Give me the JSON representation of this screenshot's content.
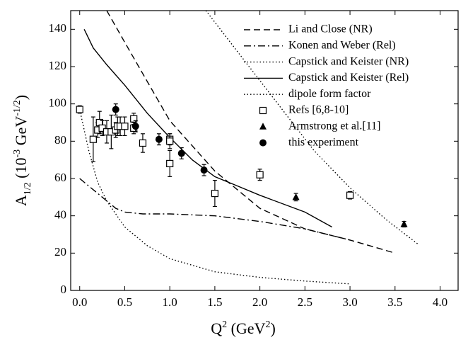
{
  "chart_data": {
    "type": "line",
    "x_label": [
      {
        "text": "Q"
      },
      {
        "text": "2",
        "shift": "super"
      },
      {
        "text": " (GeV"
      },
      {
        "text": "2",
        "shift": "super"
      },
      {
        "text": ")"
      }
    ],
    "y_label": [
      {
        "text": "A"
      },
      {
        "text": "1/2",
        "shift": "sub"
      },
      {
        "text": " (10"
      },
      {
        "text": "-3",
        "shift": "super"
      },
      {
        "text": " GeV"
      },
      {
        "text": "-1/2",
        "shift": "super"
      },
      {
        "text": ")"
      }
    ],
    "xlim": [
      -0.1,
      4.2
    ],
    "ylim": [
      0,
      150
    ],
    "xticks": [
      {
        "value": 0,
        "label": "0.0"
      },
      {
        "value": 0.5,
        "label": "0.5"
      },
      {
        "value": 1,
        "label": "1.0"
      },
      {
        "value": 1.5,
        "label": "1.5"
      },
      {
        "value": 2,
        "label": "2.0"
      },
      {
        "value": 2.5,
        "label": "2.5"
      },
      {
        "value": 3,
        "label": "3.0"
      },
      {
        "value": 3.5,
        "label": "3.5"
      },
      {
        "value": 4,
        "label": "4.0"
      }
    ],
    "yticks": [
      0,
      20,
      40,
      60,
      80,
      100,
      120,
      140
    ],
    "legend": "upper-right",
    "series": [
      {
        "name": "Li and Close (NR)",
        "type": "line",
        "style": "dashed",
        "color": "#000000",
        "x": [
          0.3,
          0.5,
          1.0,
          1.5,
          2.0,
          2.5,
          3.0,
          3.5
        ],
        "values": [
          150,
          133,
          91,
          64,
          44,
          33,
          27,
          20
        ]
      },
      {
        "name": "Konen and Weber (Rel)",
        "type": "line",
        "style": "dashdot",
        "color": "#000000",
        "x": [
          0,
          0.4,
          0.5,
          0.7,
          1.0,
          1.5,
          2.0,
          2.5,
          3.0
        ],
        "values": [
          60,
          44,
          42,
          41,
          41,
          40,
          37,
          33,
          27
        ]
      },
      {
        "name": "Capstick and Keister (NR)",
        "type": "line",
        "style": "dotted",
        "color": "#000000",
        "x": [
          1.4,
          1.8,
          2.2,
          2.6,
          3.0,
          3.4,
          3.75
        ],
        "values": [
          150,
          125,
          100,
          75,
          55,
          38,
          25
        ]
      },
      {
        "name": "Capstick and Keister (Rel)",
        "type": "line",
        "style": "solid",
        "color": "#000000",
        "x": [
          0.05,
          0.15,
          0.3,
          0.5,
          0.75,
          1.0,
          1.25,
          1.5,
          1.75,
          2.0,
          2.5,
          2.8
        ],
        "values": [
          140,
          130,
          121,
          110,
          95,
          82,
          70,
          61,
          56,
          51,
          42,
          34
        ]
      },
      {
        "name": "dipole form factor",
        "type": "line",
        "style": "dotted",
        "color": "#000000",
        "x": [
          0,
          0.1,
          0.2,
          0.3,
          0.5,
          0.75,
          1.0,
          1.5,
          2.0,
          2.5,
          3.0
        ],
        "values": [
          97,
          75,
          58,
          48,
          34,
          24,
          17,
          10,
          7,
          5,
          3.5
        ]
      },
      {
        "name": "Refs [6,8-10]",
        "type": "scatter",
        "marker": "square-open",
        "color": "#000000",
        "x": [
          0,
          0.15,
          0.2,
          0.22,
          0.25,
          0.3,
          0.35,
          0.4,
          0.42,
          0.45,
          0.5,
          0.6,
          0.6,
          0.7,
          1.0,
          1.0,
          1.0,
          1.5,
          2.0,
          3.0
        ],
        "values": [
          97,
          81,
          86,
          90,
          87,
          85,
          85,
          86,
          88,
          88,
          88,
          92,
          87,
          79,
          81,
          80,
          68,
          52,
          62,
          51
        ],
        "errors": [
          2,
          12,
          4,
          6,
          4,
          6,
          9,
          4,
          5,
          5,
          5,
          3,
          3,
          5,
          3,
          4,
          7,
          7,
          3,
          2
        ]
      },
      {
        "name": "Armstrong et al.[11]",
        "type": "scatter",
        "marker": "triangle",
        "color": "#000000",
        "x": [
          2.4,
          3.6
        ],
        "values": [
          50,
          35.5
        ],
        "errors": [
          2,
          1.5
        ]
      },
      {
        "name": "this experiment",
        "type": "scatter",
        "marker": "circle",
        "color": "#000000",
        "x": [
          0.4,
          0.62,
          0.88,
          1.13,
          1.38
        ],
        "values": [
          97,
          88,
          81,
          73.5,
          64.5
        ],
        "errors": [
          3,
          3,
          3,
          3,
          3
        ]
      }
    ]
  }
}
